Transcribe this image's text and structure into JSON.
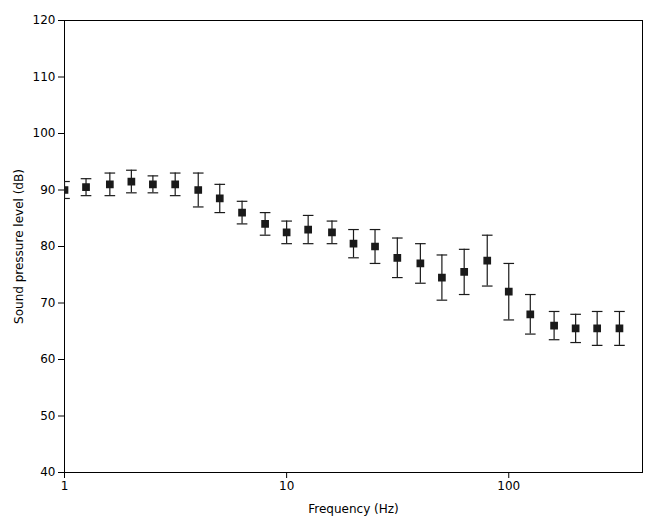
{
  "chart_data": {
    "type": "scatter",
    "x": [
      1,
      1.25,
      1.6,
      2,
      2.5,
      3.15,
      4,
      5,
      6.3,
      8,
      10,
      12.5,
      16,
      20,
      25,
      31.5,
      40,
      50,
      63,
      80,
      100,
      125,
      160,
      200,
      250,
      315
    ],
    "values": [
      90,
      90.5,
      91,
      91.5,
      91,
      91,
      90,
      88.5,
      86,
      84,
      82.5,
      83,
      82.5,
      80.5,
      80,
      78,
      77,
      74.5,
      75.5,
      77.5,
      72,
      68,
      66,
      65.5,
      65.5,
      65.5
    ],
    "errors": [
      1.5,
      1.5,
      2,
      2,
      1.5,
      2,
      3,
      2.5,
      2,
      2,
      2,
      2.5,
      2,
      2.5,
      3,
      3.5,
      3.5,
      4,
      4,
      4.5,
      5,
      3.5,
      2.5,
      2.5,
      3,
      3
    ],
    "xlabel": "Frequency (Hz)",
    "ylabel": "Sound pressure level (dB)",
    "log": "x",
    "xlim": [
      1,
      400
    ],
    "xticks": [
      1,
      10,
      100
    ],
    "ylim": [
      40,
      120
    ],
    "yticks": [
      40,
      50,
      60,
      70,
      80,
      90,
      100,
      110,
      120
    ],
    "color": "#1a1a1a",
    "marker": "square",
    "grid": false
  }
}
